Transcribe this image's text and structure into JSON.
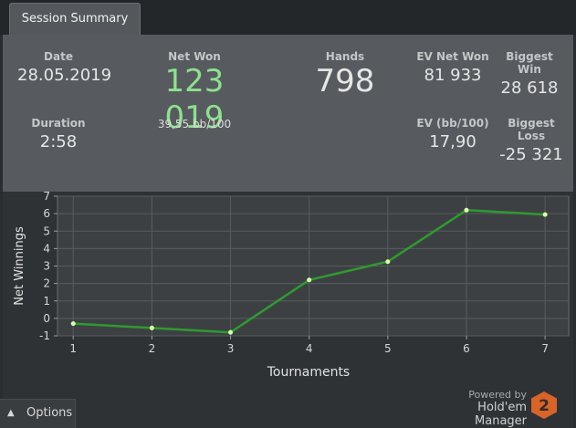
{
  "tab": {
    "label": "Session Summary"
  },
  "stats": {
    "date": {
      "label": "Date",
      "value": "28.05.2019"
    },
    "net_won": {
      "label": "Net Won",
      "value": "123 019",
      "sub": "39,55 bb/100"
    },
    "hands": {
      "label": "Hands",
      "value": "798"
    },
    "ev_net_won": {
      "label": "EV Net Won",
      "value": "81 933"
    },
    "biggest_win": {
      "label": "Biggest Win",
      "value": "28 618"
    },
    "duration": {
      "label": "Duration",
      "value": "2:58"
    },
    "ev_bb100": {
      "label": "EV (bb/100)",
      "value": "17,90"
    },
    "biggest_loss": {
      "label": "Biggest Loss",
      "value": "-25 321"
    }
  },
  "chart_data": {
    "type": "line",
    "xlabel": "Tournaments",
    "ylabel": "Net Winnings",
    "x": [
      1,
      2,
      3,
      4,
      5,
      6,
      7
    ],
    "y": [
      -0.3,
      -0.55,
      -0.8,
      2.2,
      3.25,
      6.2,
      5.95
    ],
    "xlim": [
      0.8,
      7.3
    ],
    "ylim": [
      -1,
      7
    ],
    "xticks": [
      "1",
      "2",
      "3",
      "4",
      "5",
      "6",
      "7"
    ],
    "yticks": [
      "-1",
      "0",
      "1",
      "2",
      "3",
      "4",
      "5",
      "6",
      "7"
    ],
    "grid": true,
    "line_color": "#2f9a2f",
    "point_color": "#d9ffb0"
  },
  "footer": {
    "options_label": "Options",
    "powered_by": "Powered by",
    "product": "Hold'em Manager",
    "badge": "2"
  },
  "colors": {
    "accent_green": "#8fe08f",
    "badge_orange": "#d8642a"
  }
}
